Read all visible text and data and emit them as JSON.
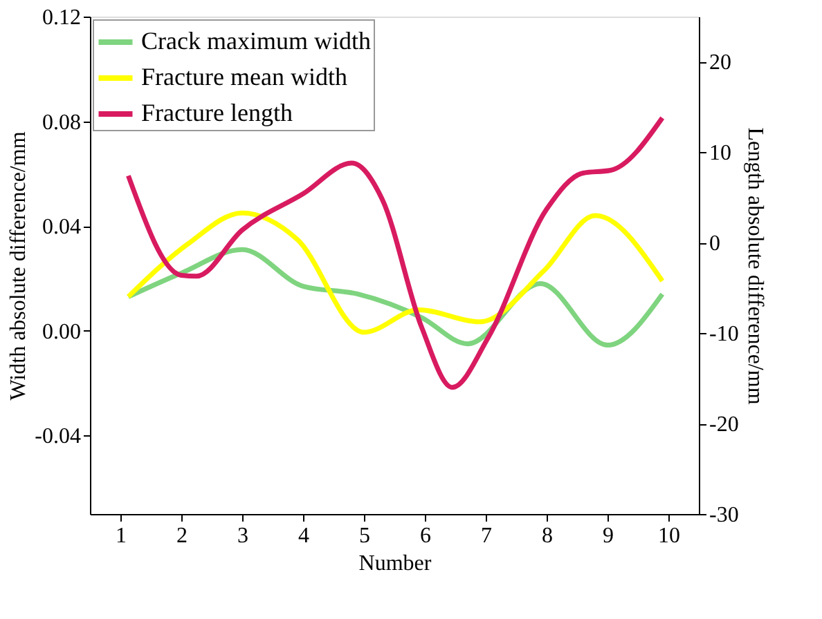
{
  "chart_data": {
    "type": "line",
    "xlabel": "Number",
    "ylabel": "Width absolute difference/mm",
    "y2label": "Length absolute difference/mm",
    "xlim": [
      0.5,
      10.5
    ],
    "xticks": [
      1,
      2,
      3,
      4,
      5,
      6,
      7,
      8,
      9,
      10
    ],
    "ylim": [
      -0.07,
      0.12
    ],
    "yticks": [
      -0.04,
      {
        "value": 0,
        "label": "0.00"
      },
      0.04,
      0.08,
      0.12
    ],
    "y2lim": [
      -30,
      25
    ],
    "y2ticks": [
      -30,
      -20,
      -10,
      0,
      10,
      20
    ],
    "grid": false,
    "legend": "top left",
    "marker": "none",
    "line_style": "solid",
    "series": [
      {
        "name": "Crack maximum width",
        "color": "#7fd47f",
        "x": [
          1.13,
          2.0,
          3.0,
          4.0,
          4.9,
          5.95,
          6.7,
          7.9,
          9.0,
          9.9
        ],
        "values": [
          0.013,
          0.022,
          0.031,
          0.017,
          0.014,
          0.005,
          -0.005,
          0.018,
          -0.0055,
          0.014
        ]
      },
      {
        "name": "Fracture mean width",
        "color": "#ffff00",
        "x": [
          1.13,
          2.1,
          3.0,
          3.9,
          5.0,
          5.9,
          6.9,
          7.96,
          8.8,
          9.9
        ],
        "values": [
          0.013,
          0.033,
          0.045,
          0.035,
          -0.0006,
          0.008,
          0.0034,
          0.023,
          0.044,
          0.019
        ]
      },
      {
        "name": "Fracture length",
        "color": "#d81b60",
        "axis": "y2",
        "x": [
          1.13,
          2.0,
          2.25,
          3.0,
          4.0,
          4.8,
          5.3,
          5.95,
          6.45,
          7.04,
          8.0,
          8.6,
          9.05,
          9.9
        ],
        "values": [
          7.4,
          -3.6,
          -3.7,
          1.4,
          5.4,
          8.8,
          4.8,
          -9.4,
          -16,
          -10.5,
          3.7,
          7.7,
          8.0,
          13.8
        ]
      }
    ]
  }
}
